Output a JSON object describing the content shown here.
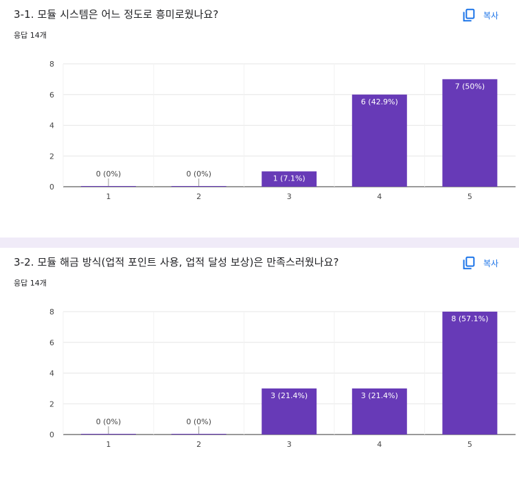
{
  "copy_label": "복사",
  "colors": {
    "bar": "#673ab7",
    "link": "#1a73e8",
    "grid": "#e6e6e6"
  },
  "questions": [
    {
      "title": "3-1. 모듈 시스템은 어느 정도로 흥미로웠나요?",
      "responses": "응답 14개"
    },
    {
      "title": "3-2. 모듈 해금 방식(업적 포인트 사용, 업적 달성 보상)은 만족스러웠나요?",
      "responses": "응답 14개"
    }
  ],
  "chart_data": [
    {
      "type": "bar",
      "categories": [
        "1",
        "2",
        "3",
        "4",
        "5"
      ],
      "values": [
        0,
        0,
        1,
        6,
        7
      ],
      "labels": [
        "0 (0%)",
        "0 (0%)",
        "1 (7.1%)",
        "6 (42.9%)",
        "7 (50%)"
      ],
      "yticks": [
        "0",
        "2",
        "4",
        "6",
        "8"
      ],
      "ylim": [
        0,
        8
      ],
      "grid": true
    },
    {
      "type": "bar",
      "categories": [
        "1",
        "2",
        "3",
        "4",
        "5"
      ],
      "values": [
        0,
        0,
        3,
        3,
        8
      ],
      "labels": [
        "0 (0%)",
        "0 (0%)",
        "3 (21.4%)",
        "3 (21.4%)",
        "8 (57.1%)"
      ],
      "yticks": [
        "0",
        "2",
        "4",
        "6",
        "8"
      ],
      "ylim": [
        0,
        8
      ],
      "grid": true
    }
  ]
}
